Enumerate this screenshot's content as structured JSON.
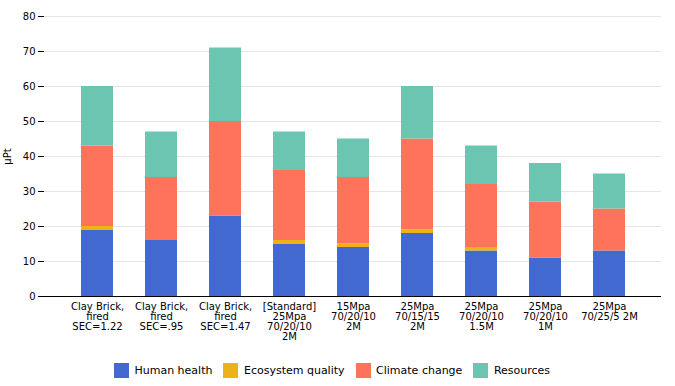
{
  "chart_data": {
    "type": "bar",
    "stacked": true,
    "categories": [
      "Clay Brick,\nfired\nSEC=1.22",
      "Clay Brick,\nfired\nSEC=.95",
      "Clay Brick,\nfired\nSEC=1.47",
      "[Standard]\n25Mpa\n70/20/10\n2M",
      "15Mpa\n70/20/10\n2M",
      "25Mpa\n70/15/15\n2M",
      "25Mpa\n70/20/10\n1.5M",
      "25Mpa\n70/20/10\n1M",
      "25Mpa\n70/25/5 2M"
    ],
    "series": [
      {
        "name": "Human health",
        "values": [
          19,
          16,
          23,
          15,
          14,
          18,
          13,
          11,
          13
        ]
      },
      {
        "name": "Ecosystem quality",
        "values": [
          1,
          0,
          0,
          1,
          1,
          1,
          1,
          0,
          0
        ]
      },
      {
        "name": "Climate change",
        "values": [
          23,
          18,
          27,
          20,
          19,
          26,
          18,
          16,
          12
        ]
      },
      {
        "name": "Resources",
        "values": [
          17,
          13,
          21,
          11,
          11,
          15,
          11,
          11,
          10
        ]
      }
    ],
    "ylabel": "μPt",
    "ylim": [
      0,
      80
    ],
    "yticks": [
      0,
      10,
      20,
      30,
      40,
      50,
      60,
      70,
      80
    ],
    "grid": true,
    "legend": "bottom"
  }
}
